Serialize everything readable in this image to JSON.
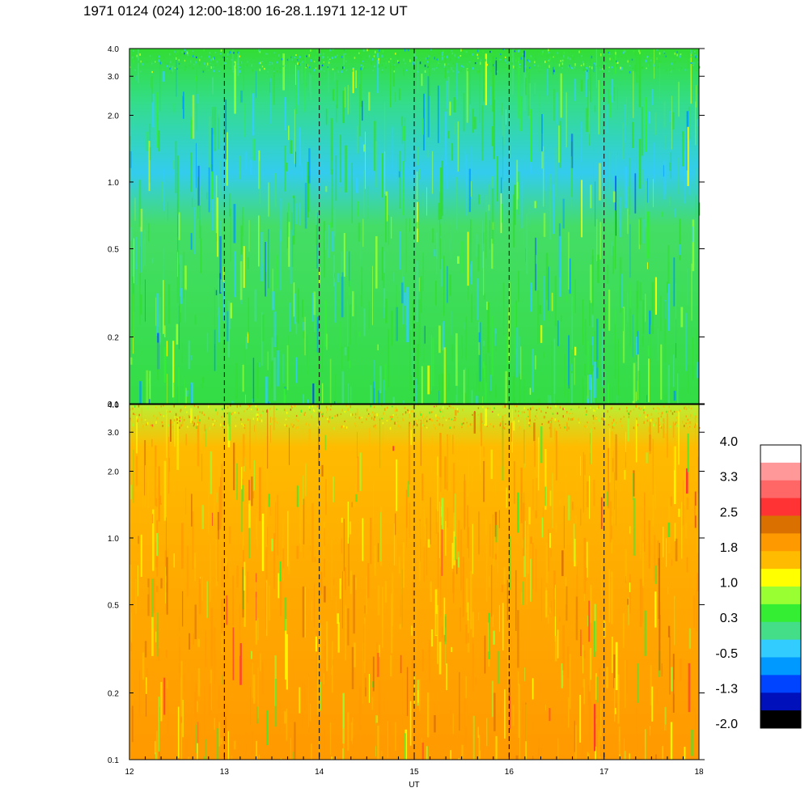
{
  "title": "1971 0124 (024) 12:00-18:00 16-28.1.1971  12-12 UT",
  "chart_data": {
    "type": "heatmap",
    "panels": [
      {
        "name": "upper",
        "y_ticks": [
          "0.1",
          "0.2",
          "0.5",
          "1.0",
          "2.0",
          "3.0",
          "4.0"
        ],
        "y_values": [
          0.1,
          0.2,
          0.5,
          1.0,
          2.0,
          3.0,
          4.0
        ],
        "ylim": [
          0.1,
          4.0
        ],
        "y_scale": "log",
        "dominant_levels": [
          "green",
          "cyan",
          "blue"
        ]
      },
      {
        "name": "lower",
        "y_ticks": [
          "0.1",
          "0.2",
          "0.5",
          "1.0",
          "2.0",
          "3.0",
          "4.0"
        ],
        "y_values": [
          0.1,
          0.2,
          0.5,
          1.0,
          2.0,
          3.0,
          4.0
        ],
        "ylim": [
          0.1,
          4.0
        ],
        "y_scale": "log",
        "dominant_levels": [
          "orange",
          "yellow",
          "green"
        ]
      }
    ],
    "x_ticks": [
      "12",
      "13",
      "14",
      "15",
      "16",
      "17",
      "18"
    ],
    "x_values": [
      12,
      13,
      14,
      15,
      16,
      17,
      18
    ],
    "xlim": [
      12,
      18
    ],
    "xlabel": "UT",
    "dashed_verticals": [
      13,
      14,
      15,
      16,
      17
    ],
    "colorbar": {
      "labels": [
        "4.0",
        "3.3",
        "2.5",
        "1.8",
        "1.0",
        "0.3",
        "-0.5",
        "-1.3",
        "-2.0"
      ],
      "colors_top_to_bottom": [
        "#ffffff",
        "#ff9999",
        "#ff6666",
        "#ff3333",
        "#d97000",
        "#ff9900",
        "#ffbb00",
        "#ffff00",
        "#99ff33",
        "#33ee33",
        "#44dd88",
        "#33ccff",
        "#0099ff",
        "#0044ff",
        "#0011bb",
        "#000000"
      ]
    }
  }
}
